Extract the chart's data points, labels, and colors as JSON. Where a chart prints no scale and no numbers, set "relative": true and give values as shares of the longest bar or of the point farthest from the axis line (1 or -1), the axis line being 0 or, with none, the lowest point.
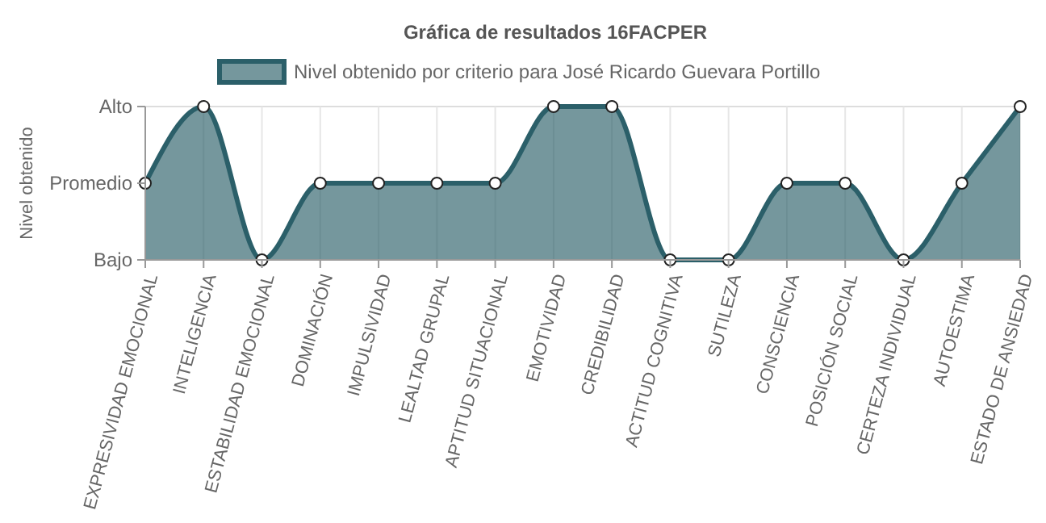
{
  "chart_data": {
    "type": "area",
    "title": "Gráfica de resultados 16FACPER",
    "ylabel": "Nivel obtenido",
    "categories": [
      "EXPRESIVIDAD EMOCIONAL",
      "INTELIGENCIA",
      "ESTABILIDAD EMOCIONAL",
      "DOMINACIÓN",
      "IMPULSIVIDAD",
      "LEALTAD GRUPAL",
      "APTITUD SITUACIONAL",
      "EMOTIVIDAD",
      "CREDIBILIDAD",
      "ACTITUD COGNITIVA",
      "SUTILEZA",
      "CONSCIENCIA",
      "POSICIÓN SOCIAL",
      "CERTEZA INDIVIDUAL",
      "AUTOESTIMA",
      "ESTADO DE ANSIEDAD"
    ],
    "series": [
      {
        "name": "Nivel obtenido por criterio para José Ricardo Guevara Portillo",
        "color": "#2b5f69",
        "values": [
          0.5,
          1,
          0,
          0.5,
          0.5,
          0.5,
          0.5,
          1,
          1,
          0,
          0,
          0.5,
          0.5,
          0,
          0.5,
          1
        ]
      }
    ],
    "relative": true,
    "annotations": [
      "Bajo",
      "Promedio",
      "Alto"
    ],
    "grid": "x",
    "legend": "top",
    "marker": "circle"
  }
}
